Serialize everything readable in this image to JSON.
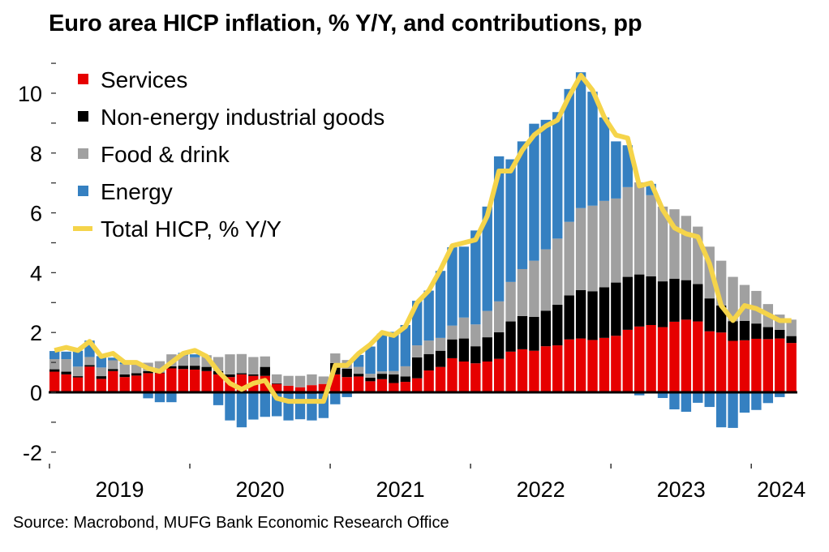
{
  "title": "Euro area HICP inflation, % Y/Y, and contributions, pp",
  "source": "Source: Macrobond, MUFG Bank Economic Research Office",
  "chart_data": {
    "type": "bar",
    "subtype": "stacked bar with line overlay",
    "title": "Euro area HICP inflation, % Y/Y, and contributions, pp",
    "xlabel": "",
    "ylabel": "",
    "ylim": [
      -2.5,
      11
    ],
    "yticks": [
      -2,
      0,
      2,
      4,
      6,
      8,
      10
    ],
    "ytick_labels": [
      "-2",
      "0",
      "2",
      "4",
      "6",
      "8",
      "10"
    ],
    "x_start": "2019-01",
    "x_end": "2024-04",
    "year_labels": [
      "2019",
      "2020",
      "2021",
      "2022",
      "2023",
      "2024"
    ],
    "grid": false,
    "legend_position": "top-left",
    "categories": [
      "2019-01",
      "2019-02",
      "2019-03",
      "2019-04",
      "2019-05",
      "2019-06",
      "2019-07",
      "2019-08",
      "2019-09",
      "2019-10",
      "2019-11",
      "2019-12",
      "2020-01",
      "2020-02",
      "2020-03",
      "2020-04",
      "2020-05",
      "2020-06",
      "2020-07",
      "2020-08",
      "2020-09",
      "2020-10",
      "2020-11",
      "2020-12",
      "2021-01",
      "2021-02",
      "2021-03",
      "2021-04",
      "2021-05",
      "2021-06",
      "2021-07",
      "2021-08",
      "2021-09",
      "2021-10",
      "2021-11",
      "2021-12",
      "2022-01",
      "2022-02",
      "2022-03",
      "2022-04",
      "2022-05",
      "2022-06",
      "2022-07",
      "2022-08",
      "2022-09",
      "2022-10",
      "2022-11",
      "2022-12",
      "2023-01",
      "2023-02",
      "2023-03",
      "2023-04",
      "2023-05",
      "2023-06",
      "2023-07",
      "2023-08",
      "2023-09",
      "2023-10",
      "2023-11",
      "2023-12",
      "2024-01",
      "2024-02",
      "2024-03",
      "2024-04"
    ],
    "series": [
      {
        "name": "Services",
        "type": "bar",
        "color": "#e60000",
        "values": [
          0.69,
          0.6,
          0.5,
          0.86,
          0.45,
          0.71,
          0.51,
          0.56,
          0.64,
          0.64,
          0.8,
          0.78,
          0.76,
          0.71,
          0.6,
          0.51,
          0.6,
          0.55,
          0.55,
          0.28,
          0.22,
          0.17,
          0.24,
          0.28,
          0.6,
          0.51,
          0.53,
          0.37,
          0.44,
          0.31,
          0.35,
          0.47,
          0.73,
          0.85,
          1.14,
          1.03,
          0.97,
          1.03,
          1.12,
          1.36,
          1.44,
          1.39,
          1.54,
          1.57,
          1.77,
          1.8,
          1.75,
          1.82,
          1.89,
          2.09,
          2.2,
          2.25,
          2.18,
          2.36,
          2.43,
          2.37,
          2.04,
          2.0,
          1.72,
          1.74,
          1.79,
          1.78,
          1.8,
          1.65
        ]
      },
      {
        "name": "Non-energy industrial goods",
        "type": "bar",
        "color": "#000000",
        "values": [
          0.08,
          0.09,
          0.04,
          0.05,
          0.09,
          0.07,
          0.09,
          0.08,
          0.07,
          0.02,
          0.07,
          0.11,
          0.13,
          0.14,
          0.11,
          0.09,
          0.04,
          0.05,
          0.3,
          0.02,
          -0.05,
          -0.05,
          -0.05,
          -0.04,
          0.38,
          0.28,
          0.09,
          0.12,
          0.18,
          0.29,
          0.18,
          0.7,
          0.55,
          0.54,
          0.63,
          0.77,
          0.57,
          0.81,
          0.89,
          1.01,
          1.11,
          1.13,
          1.19,
          1.36,
          1.47,
          1.62,
          1.63,
          1.69,
          1.78,
          1.77,
          1.74,
          1.63,
          1.53,
          1.44,
          1.32,
          1.25,
          1.1,
          0.9,
          0.66,
          0.65,
          0.51,
          0.4,
          0.29,
          0.23
        ]
      },
      {
        "name": "Food & drink",
        "type": "bar",
        "color": "#a0a0a0",
        "values": [
          0.34,
          0.42,
          0.32,
          0.27,
          0.29,
          0.29,
          0.34,
          0.3,
          0.28,
          0.38,
          0.4,
          0.34,
          0.28,
          0.39,
          0.47,
          0.67,
          0.64,
          0.58,
          0.35,
          0.3,
          0.33,
          0.38,
          0.36,
          0.25,
          0.32,
          0.29,
          0.23,
          0.13,
          0.08,
          0.11,
          0.34,
          0.4,
          0.45,
          0.43,
          0.46,
          0.7,
          0.73,
          0.88,
          1.03,
          1.32,
          1.57,
          1.88,
          2.05,
          2.21,
          2.46,
          2.74,
          2.86,
          2.89,
          2.81,
          3.0,
          3.08,
          2.71,
          2.5,
          2.32,
          2.15,
          1.92,
          1.73,
          1.5,
          1.48,
          1.2,
          1.09,
          0.77,
          0.51,
          0.55
        ]
      },
      {
        "name": "Energy",
        "type": "bar",
        "color": "#3580c1",
        "values": [
          0.27,
          0.25,
          0.53,
          0.55,
          0.38,
          0.09,
          0.06,
          -0.03,
          -0.2,
          -0.33,
          -0.33,
          0.09,
          0.1,
          0.0,
          -0.43,
          -0.94,
          -1.17,
          -0.91,
          -0.82,
          -0.8,
          -0.89,
          -0.85,
          -0.89,
          -0.82,
          -0.4,
          -0.16,
          0.4,
          0.91,
          1.26,
          1.31,
          1.38,
          1.49,
          1.67,
          2.24,
          2.62,
          2.37,
          3.14,
          3.49,
          4.85,
          4.1,
          4.27,
          4.58,
          4.33,
          4.23,
          4.44,
          4.54,
          3.81,
          2.79,
          1.91,
          1.4,
          -0.1,
          0.38,
          -0.19,
          -0.57,
          -0.65,
          -0.35,
          -0.49,
          -1.17,
          -1.19,
          -0.68,
          -0.59,
          -0.36,
          -0.16,
          0.0
        ]
      },
      {
        "name": "Total HICP, % Y/Y",
        "type": "line",
        "color": "#f5d44a",
        "values": [
          1.4,
          1.5,
          1.4,
          1.7,
          1.2,
          1.3,
          1.0,
          1.0,
          0.8,
          0.7,
          1.0,
          1.3,
          1.4,
          1.2,
          0.7,
          0.3,
          0.1,
          0.3,
          0.4,
          -0.2,
          -0.3,
          -0.3,
          -0.3,
          -0.3,
          0.9,
          0.9,
          1.3,
          1.6,
          2.0,
          1.9,
          2.2,
          3.0,
          3.4,
          4.1,
          4.9,
          5.0,
          5.1,
          5.9,
          7.4,
          7.4,
          8.1,
          8.6,
          8.9,
          9.1,
          9.9,
          10.6,
          10.1,
          9.2,
          8.6,
          8.5,
          6.9,
          7.0,
          6.1,
          5.5,
          5.3,
          5.2,
          4.3,
          2.9,
          2.4,
          2.9,
          2.8,
          2.6,
          2.4,
          2.4
        ]
      }
    ],
    "legend": [
      {
        "label": "Services",
        "color": "#e60000",
        "marker": "square"
      },
      {
        "label": "Non-energy industrial goods",
        "color": "#000000",
        "marker": "square"
      },
      {
        "label": "Food & drink",
        "color": "#a0a0a0",
        "marker": "square"
      },
      {
        "label": "Energy",
        "color": "#3580c1",
        "marker": "square"
      },
      {
        "label": "Total HICP, % Y/Y",
        "color": "#f5d44a",
        "marker": "line"
      }
    ]
  }
}
